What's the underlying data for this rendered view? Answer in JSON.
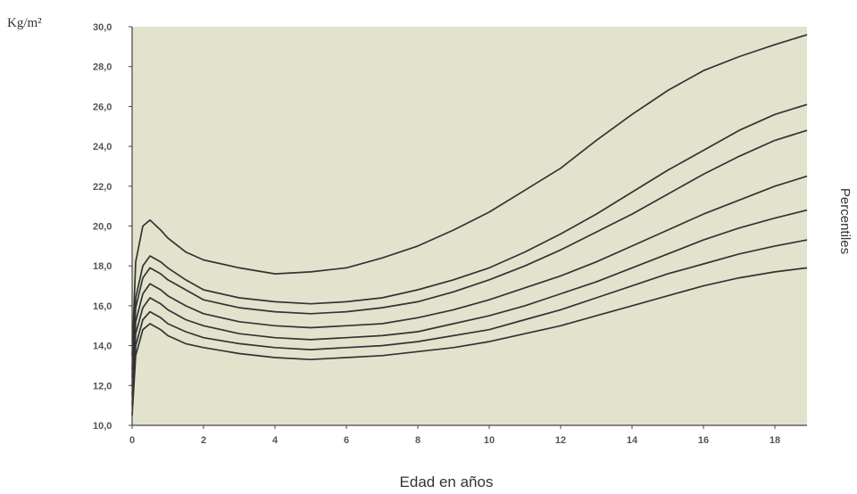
{
  "chart_data": {
    "type": "line",
    "title": "",
    "ylabel": "Kg/m²",
    "xlabel": "Edad en años",
    "right_label": "Percentiles",
    "xlim": [
      0,
      18.9
    ],
    "ylim": [
      10,
      30
    ],
    "x_ticks": [
      0,
      2,
      4,
      6,
      8,
      10,
      12,
      14,
      16,
      18
    ],
    "y_ticks": [
      "10,0",
      "12,0",
      "14,0",
      "16,0",
      "18,0",
      "20,0",
      "22,0",
      "24,0",
      "26,0",
      "28,0",
      "30,0"
    ],
    "grid": false,
    "colors": {
      "plot_background": "#e3e2cd",
      "line": "#333333",
      "axis": "#444444"
    },
    "x": [
      0,
      0.1,
      0.3,
      0.5,
      0.8,
      1,
      1.5,
      2,
      3,
      4,
      5,
      6,
      7,
      8,
      9,
      10,
      11,
      12,
      13,
      14,
      15,
      16,
      17,
      18,
      18.9
    ],
    "series": [
      {
        "values": [
          10.5,
          13.5,
          14.8,
          15.1,
          14.8,
          14.5,
          14.1,
          13.9,
          13.6,
          13.4,
          13.3,
          13.4,
          13.5,
          13.7,
          13.9,
          14.2,
          14.6,
          15.0,
          15.5,
          16.0,
          16.5,
          17.0,
          17.4,
          17.7,
          17.9
        ]
      },
      {
        "values": [
          11.0,
          14.0,
          15.3,
          15.7,
          15.4,
          15.1,
          14.7,
          14.4,
          14.1,
          13.9,
          13.8,
          13.9,
          14.0,
          14.2,
          14.5,
          14.8,
          15.3,
          15.8,
          16.4,
          17.0,
          17.6,
          18.1,
          18.6,
          19.0,
          19.3
        ]
      },
      {
        "values": [
          11.5,
          14.6,
          15.9,
          16.4,
          16.1,
          15.8,
          15.3,
          15.0,
          14.6,
          14.4,
          14.3,
          14.4,
          14.5,
          14.7,
          15.1,
          15.5,
          16.0,
          16.6,
          17.2,
          17.9,
          18.6,
          19.3,
          19.9,
          20.4,
          20.8
        ]
      },
      {
        "values": [
          12.0,
          15.2,
          16.6,
          17.1,
          16.8,
          16.5,
          16.0,
          15.6,
          15.2,
          15.0,
          14.9,
          15.0,
          15.1,
          15.4,
          15.8,
          16.3,
          16.9,
          17.5,
          18.2,
          19.0,
          19.8,
          20.6,
          21.3,
          22.0,
          22.5
        ]
      },
      {
        "values": [
          12.4,
          15.9,
          17.4,
          17.9,
          17.6,
          17.3,
          16.8,
          16.3,
          15.9,
          15.7,
          15.6,
          15.7,
          15.9,
          16.2,
          16.7,
          17.3,
          18.0,
          18.8,
          19.7,
          20.6,
          21.6,
          22.6,
          23.5,
          24.3,
          24.8
        ]
      },
      {
        "values": [
          12.8,
          16.4,
          18.0,
          18.5,
          18.2,
          17.9,
          17.3,
          16.8,
          16.4,
          16.2,
          16.1,
          16.2,
          16.4,
          16.8,
          17.3,
          17.9,
          18.7,
          19.6,
          20.6,
          21.7,
          22.8,
          23.8,
          24.8,
          25.6,
          26.1
        ]
      },
      {
        "values": [
          13.5,
          18.2,
          20.0,
          20.3,
          19.8,
          19.4,
          18.7,
          18.3,
          17.9,
          17.6,
          17.7,
          17.9,
          18.4,
          19.0,
          19.8,
          20.7,
          21.8,
          22.9,
          24.3,
          25.6,
          26.8,
          27.8,
          28.5,
          29.1,
          29.6
        ]
      }
    ]
  }
}
